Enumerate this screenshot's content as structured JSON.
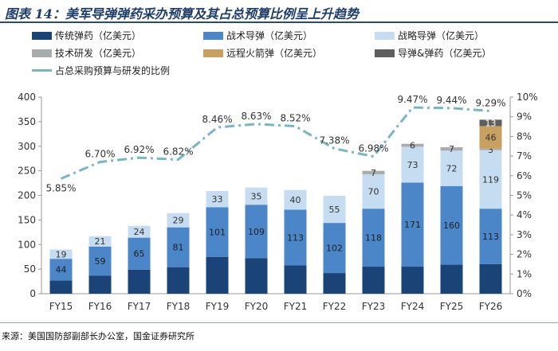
{
  "title": "图表 14：美军导弹弹药采办预算及其占总预算比例呈上升趋势",
  "source": "来源：美国国防部副部长办公室，国金证券研究所",
  "colors": {
    "strategic": "#1a4478",
    "tactical": "#4a86c8",
    "strategic_guided": "#c6dcf0",
    "tech": "#a9abad",
    "hypersonic": "#c8a060",
    "guided_ammo": "#5e5e5e",
    "ratio_line": "#79b6c3"
  },
  "chart_data": {
    "type": "bar",
    "title": "图表 14：美军导弹弹药采办预算及其占总预算比例呈上升趋势",
    "categories": [
      "FY15",
      "FY16",
      "FY17",
      "FY18",
      "FY19",
      "FY20",
      "FY21",
      "FY22",
      "FY23",
      "FY24",
      "FY25",
      "FY26"
    ],
    "series": [
      {
        "name": "传统弹药（亿美元）",
        "key": "strategic",
        "values": [
          27,
          37,
          49,
          54,
          75,
          72,
          58,
          42,
          55,
          55,
          59,
          60
        ]
      },
      {
        "name": "战术导弹（亿美元）",
        "key": "tactical",
        "values": [
          44,
          59,
          65,
          81,
          101,
          109,
          113,
          102,
          118,
          171,
          160,
          113
        ]
      },
      {
        "name": "战略导弹（亿美元）",
        "key": "strategic_guided",
        "values": [
          19,
          21,
          24,
          29,
          33,
          35,
          40,
          55,
          70,
          73,
          72,
          119
        ]
      },
      {
        "name": "技术研发（亿美元）",
        "key": "tech",
        "values": [
          null,
          null,
          null,
          null,
          null,
          null,
          null,
          null,
          7,
          6,
          7,
          3
        ]
      },
      {
        "name": "远程火箭弹（亿美元）",
        "key": "hypersonic",
        "values": [
          null,
          null,
          null,
          null,
          null,
          null,
          null,
          null,
          null,
          null,
          null,
          46
        ]
      },
      {
        "name": "导弹&弹药（亿美元）",
        "key": "guided_ammo",
        "values": [
          null,
          null,
          null,
          null,
          null,
          null,
          null,
          null,
          null,
          null,
          null,
          13
        ]
      }
    ],
    "line_series": {
      "name": "占总采购预算与研发的比例",
      "values": [
        5.85,
        6.7,
        6.92,
        6.82,
        8.46,
        8.63,
        8.52,
        7.38,
        6.98,
        9.47,
        9.44,
        9.29
      ],
      "labels": [
        "5.85%",
        "6.70%",
        "6.92%",
        "6.82%",
        "8.46%",
        "8.63%",
        "8.52%",
        "7.38%",
        "6.98%",
        "9.47%",
        "9.44%",
        "9.29%"
      ]
    },
    "y_left": {
      "min": 0,
      "max": 400,
      "ticks": [
        "0",
        "50",
        "100",
        "150",
        "200",
        "250",
        "300",
        "350",
        "400"
      ]
    },
    "y_right": {
      "min": 0,
      "max": 10,
      "ticks": [
        "0%",
        "1%",
        "2%",
        "3%",
        "4%",
        "5%",
        "6%",
        "7%",
        "8%",
        "9%",
        "10%"
      ]
    },
    "legend_position": "top"
  }
}
